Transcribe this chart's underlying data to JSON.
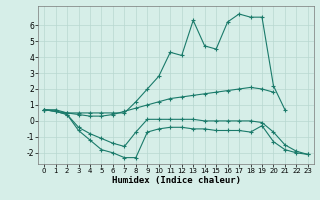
{
  "xlabel": "Humidex (Indice chaleur)",
  "ylabel": "",
  "background_color": "#d6eee8",
  "grid_color": "#b8d8d0",
  "line_color": "#1a7a6a",
  "xlim": [
    -0.5,
    23.5
  ],
  "ylim": [
    -2.7,
    7.2
  ],
  "yticks": [
    -2,
    -1,
    0,
    1,
    2,
    3,
    4,
    5,
    6
  ],
  "xticks": [
    0,
    1,
    2,
    3,
    4,
    5,
    6,
    7,
    8,
    9,
    10,
    11,
    12,
    13,
    14,
    15,
    16,
    17,
    18,
    19,
    20,
    21,
    22,
    23
  ],
  "series": [
    {
      "x": [
        0,
        1,
        2,
        3,
        4,
        5,
        6,
        7,
        8,
        9,
        10,
        11,
        12,
        13,
        14,
        15,
        16,
        17,
        18,
        19,
        20,
        21
      ],
      "y": [
        0.7,
        0.6,
        0.5,
        0.5,
        0.5,
        0.5,
        0.5,
        0.5,
        1.2,
        2.0,
        2.8,
        4.3,
        4.1,
        6.3,
        4.7,
        4.5,
        6.2,
        6.7,
        6.5,
        6.5,
        2.2,
        0.7
      ]
    },
    {
      "x": [
        0,
        1,
        2,
        3,
        4,
        5,
        6,
        7,
        8,
        9,
        10,
        11,
        12,
        13,
        14,
        15,
        16,
        17,
        18,
        19,
        20
      ],
      "y": [
        0.7,
        0.7,
        0.5,
        0.4,
        0.3,
        0.3,
        0.4,
        0.6,
        0.8,
        1.0,
        1.2,
        1.4,
        1.5,
        1.6,
        1.7,
        1.8,
        1.9,
        2.0,
        2.1,
        2.0,
        1.8
      ]
    },
    {
      "x": [
        0,
        1,
        2,
        3,
        4,
        5,
        6,
        7,
        8,
        9,
        10,
        11,
        12,
        13,
        14,
        15,
        16,
        17,
        18,
        19,
        20,
        21,
        22,
        23
      ],
      "y": [
        0.7,
        0.6,
        0.4,
        -0.6,
        -1.2,
        -1.8,
        -2.0,
        -2.3,
        -2.3,
        -0.7,
        -0.5,
        -0.4,
        -0.4,
        -0.5,
        -0.5,
        -0.6,
        -0.6,
        -0.6,
        -0.7,
        -0.3,
        -1.3,
        -1.8,
        -2.0,
        -2.1
      ]
    },
    {
      "x": [
        0,
        1,
        2,
        3,
        4,
        5,
        6,
        7,
        8,
        9,
        10,
        11,
        12,
        13,
        14,
        15,
        16,
        17,
        18,
        19,
        20,
        21,
        22,
        23
      ],
      "y": [
        0.7,
        0.6,
        0.4,
        -0.4,
        -0.8,
        -1.1,
        -1.4,
        -1.6,
        -0.7,
        0.1,
        0.1,
        0.1,
        0.1,
        0.1,
        0.0,
        0.0,
        0.0,
        0.0,
        0.0,
        -0.1,
        -0.7,
        -1.5,
        -1.9,
        -2.1
      ]
    }
  ]
}
